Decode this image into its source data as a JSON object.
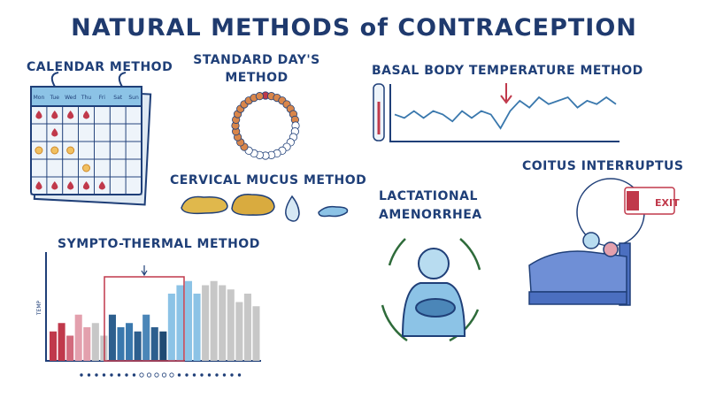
{
  "title": "NATURAL METHODS of CONTRACEPTION",
  "calendar": {
    "label": "CALENDAR METHOD",
    "days": [
      "Mon",
      "Tue",
      "Wed",
      "Thu",
      "Fri",
      "Sat",
      "Sun"
    ]
  },
  "standard_days": {
    "label_lines": [
      "STANDARD DAY'S",
      "METHOD"
    ]
  },
  "basal_body_temperature": {
    "label": "BASAL BODY TEMPERATURE METHOD",
    "values": [
      5,
      4,
      6,
      4,
      6,
      5,
      3,
      6,
      4,
      6,
      5,
      1,
      6,
      9,
      7,
      10,
      8,
      9,
      10,
      7,
      9,
      8,
      10,
      8
    ]
  },
  "cervical_mucus": {
    "label": "CERVICAL MUCUS METHOD"
  },
  "lactational": {
    "label_lines": [
      "LACTATIONAL",
      "AMENORRHEA"
    ]
  },
  "coitus": {
    "label": "COITUS INTERRUPTUS",
    "sign": "EXIT"
  },
  "sympto_thermal": {
    "label": "SYMPTO-THERMAL METHOD",
    "axis_label": "TEMP",
    "values": [
      35,
      45,
      30,
      55,
      40,
      45,
      30,
      55,
      40,
      45,
      35,
      55,
      40,
      35,
      80,
      90,
      95,
      80,
      90,
      95,
      90,
      85,
      70,
      80,
      65
    ],
    "colors": [
      "#c0394b",
      "#c0394b",
      "#d26a7c",
      "#e3a0ad",
      "#e3a0ad",
      "#c7c7c7",
      "#c7c7c7",
      "#2d5f8e",
      "#3a78ad",
      "#3a78ad",
      "#2d5f8e",
      "#4b86b8",
      "#2d5f8e",
      "#1f4a73",
      "#8cc3e6",
      "#8cc3e6",
      "#8cc3e6",
      "#8cc3e6",
      "#c7c7c7",
      "#c7c7c7",
      "#c7c7c7",
      "#c7c7c7",
      "#c7c7c7",
      "#c7c7c7",
      "#c7c7c7"
    ]
  }
}
